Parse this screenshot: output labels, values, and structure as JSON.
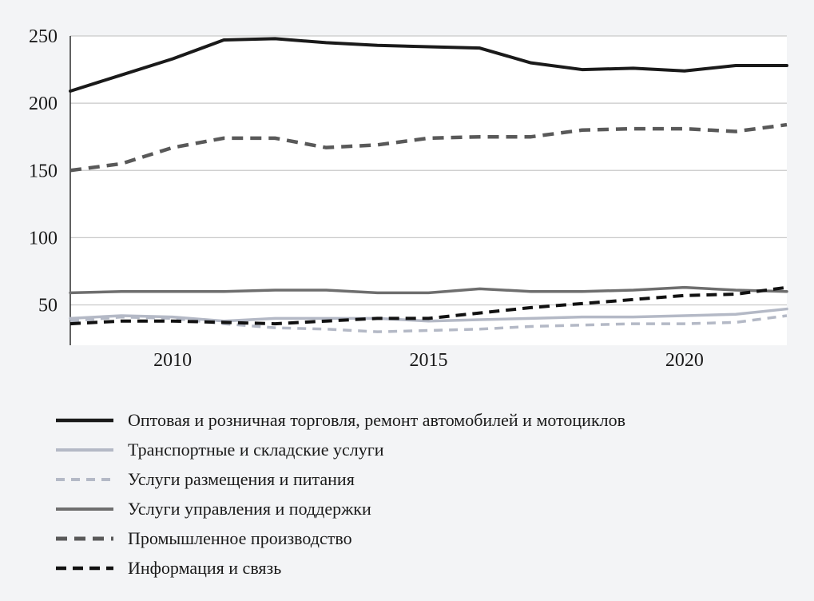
{
  "chart_data": {
    "type": "line",
    "title": "",
    "xlabel": "",
    "ylabel": "",
    "x": [
      2008,
      2009,
      2010,
      2011,
      2012,
      2013,
      2014,
      2015,
      2016,
      2017,
      2018,
      2019,
      2020,
      2021,
      2022
    ],
    "x_ticks": [
      2010,
      2015,
      2020
    ],
    "y_ticks": [
      50,
      100,
      150,
      200,
      250
    ],
    "ylim": [
      20,
      250
    ],
    "grid": true,
    "legend_position": "bottom-left",
    "colors": {
      "axis": "#3a3a3a",
      "gridline": "#c9c9c9",
      "plot_background": "#ffffff",
      "page_background": "#f3f4f6"
    },
    "series": [
      {
        "name": "Оптовая и розничная торговля, ремонт автомобилей и мотоциклов",
        "color": "#1a1a1a",
        "dash": "solid",
        "dasharray": "",
        "width": 4,
        "values": [
          209,
          221,
          233,
          247,
          248,
          245,
          243,
          242,
          241,
          230,
          225,
          226,
          224,
          228,
          228
        ]
      },
      {
        "name": "Транспортные и складские услуги",
        "color": "#b4b9c6",
        "dash": "solid",
        "dasharray": "",
        "width": 3.5,
        "values": [
          40,
          42,
          41,
          38,
          40,
          40,
          40,
          38,
          39,
          40,
          41,
          41,
          42,
          43,
          47
        ]
      },
      {
        "name": "Услуги размещения и питания",
        "color": "#b4b9c6",
        "dash": "dashed",
        "dasharray": "11 8",
        "width": 3.5,
        "values": [
          38,
          41,
          40,
          36,
          33,
          32,
          30,
          31,
          32,
          34,
          35,
          36,
          36,
          37,
          42
        ]
      },
      {
        "name": "Услуги управления и поддержки",
        "color": "#6e6e6e",
        "dash": "solid",
        "dasharray": "",
        "width": 3.5,
        "values": [
          59,
          60,
          60,
          60,
          61,
          61,
          59,
          59,
          62,
          60,
          60,
          61,
          63,
          61,
          60
        ]
      },
      {
        "name": "Промышленное производство",
        "color": "#595959",
        "dash": "dashed",
        "dasharray": "14 9",
        "width": 4.5,
        "values": [
          150,
          155,
          167,
          174,
          174,
          167,
          169,
          174,
          175,
          175,
          180,
          181,
          181,
          179,
          184
        ]
      },
      {
        "name": "Информация и связь",
        "color": "#111111",
        "dash": "dashed",
        "dasharray": "13 8",
        "width": 4,
        "values": [
          36,
          38,
          38,
          37,
          36,
          38,
          40,
          40,
          44,
          48,
          51,
          54,
          57,
          58,
          63
        ]
      }
    ]
  }
}
